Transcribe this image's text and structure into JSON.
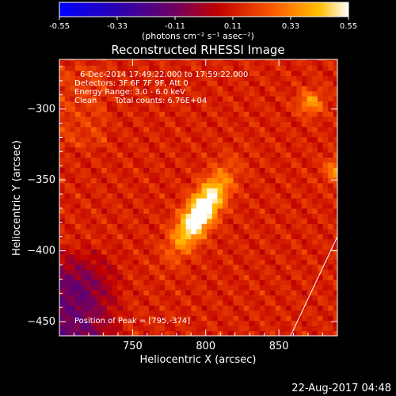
{
  "chart_data": {
    "type": "heatmap",
    "title": "Reconstructed RHESSI Image",
    "xlabel": "Heliocentric X (arcsec)",
    "ylabel": "Heliocentric Y (arcsec)",
    "xlim": [
      700,
      890
    ],
    "ylim": [
      -460,
      -265
    ],
    "xticks": [
      750,
      800,
      850
    ],
    "yticks": [
      -300,
      -350,
      -400,
      -450
    ],
    "colorbar": {
      "range": [
        -0.55,
        0.55
      ],
      "ticks": [
        "-0.55",
        "-0.33",
        "-0.11",
        "0.11",
        "0.33",
        "0.55"
      ],
      "units": "(photons cm⁻² s⁻¹ asec⁻²)",
      "colormap": [
        "#0000ff",
        "#3a00b0",
        "#6a0060",
        "#c00000",
        "#ff5000",
        "#ffb000",
        "#ffffff"
      ]
    },
    "annotations": {
      "time_range": "6-Dec-2014 17:49:22.000 to 17:59:22.000",
      "detectors": "Detectors: 3F 6F 7F 9F, Att 0",
      "energy": "Energy Range: 3.0 - 6.0 keV",
      "method": "Clean",
      "counts": "Total counts: 6.76E+04",
      "peak": "Position of Peak = [795,-374]"
    },
    "sources": [
      {
        "x": 795,
        "y": -374,
        "intensity": 0.55
      },
      {
        "x": 870,
        "y": -297,
        "intensity": 0.3
      },
      {
        "x": 888,
        "y": -345,
        "intensity": 0.28
      }
    ],
    "limb_line": [
      [
        858,
        -460
      ],
      [
        890,
        -390
      ]
    ]
  },
  "footer": {
    "timestamp": "22-Aug-2017 04:48"
  }
}
